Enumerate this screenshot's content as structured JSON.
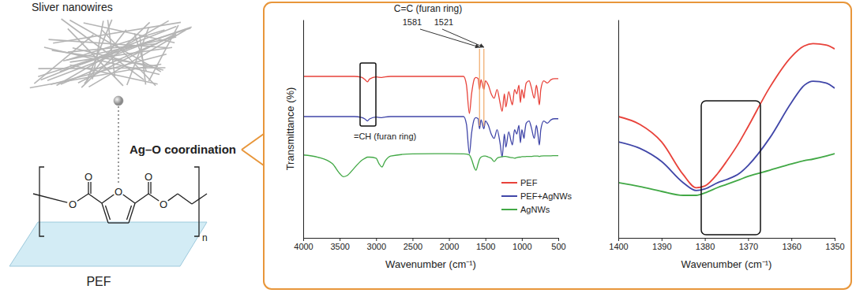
{
  "diagram": {
    "title": "Sliver nanowires",
    "link": "Ag–O coordination",
    "substrate": "PEF",
    "atoms": [
      "O",
      "O",
      "O",
      "O",
      "O"
    ],
    "repeat": "n"
  },
  "chart_data": [
    {
      "type": "line",
      "xlabel": "Wavenumber (cm⁻¹)",
      "ylabel": "Transmittance (%)",
      "x": [
        4000,
        3800,
        3600,
        3500,
        3450,
        3400,
        3300,
        3200,
        3150,
        3120,
        3090,
        3000,
        2960,
        2920,
        2880,
        2800,
        2500,
        2200,
        2000,
        1800,
        1760,
        1720,
        1690,
        1650,
        1630,
        1600,
        1581,
        1560,
        1521,
        1500,
        1460,
        1420,
        1380,
        1340,
        1300,
        1270,
        1240,
        1220,
        1180,
        1150,
        1130,
        1100,
        1070,
        1040,
        1020,
        1000,
        970,
        960,
        940,
        900,
        870,
        830,
        800,
        780,
        760,
        740,
        700,
        650,
        600,
        550,
        500
      ],
      "series": [
        {
          "name": "PEF",
          "color": "#e8423a",
          "values": [
            74,
            74,
            74,
            74,
            74,
            74,
            74,
            73.6,
            72.5,
            71.5,
            72.8,
            73.8,
            73.6,
            73.5,
            73.8,
            74,
            74,
            74,
            74,
            74,
            70,
            57,
            66,
            73,
            73.5,
            73,
            68,
            72.5,
            68,
            72,
            70,
            66,
            64,
            68,
            62,
            58,
            66,
            60,
            67,
            63,
            61,
            68,
            66,
            70,
            62,
            68,
            64,
            67,
            71,
            72,
            69,
            64,
            70,
            66,
            61,
            68,
            72,
            71,
            72.5,
            73,
            73
          ]
        },
        {
          "name": "PEF+AgNWs",
          "color": "#4046a8",
          "values": [
            55.6,
            55.6,
            55.6,
            55.6,
            55.6,
            55.6,
            55.6,
            55.2,
            54.4,
            53.6,
            54.5,
            55.4,
            55.2,
            55.1,
            55.4,
            55.6,
            55.6,
            55.6,
            55.6,
            55.6,
            52,
            38.6,
            48,
            54.6,
            55.1,
            54.6,
            50,
            54.1,
            50,
            53.6,
            51.6,
            47.6,
            45.6,
            49.6,
            43.6,
            37,
            47.6,
            41.6,
            48.6,
            44.6,
            42.6,
            49.6,
            47.6,
            51.6,
            43.6,
            49.6,
            45.6,
            48.6,
            52.6,
            53.6,
            50.6,
            45.6,
            51.6,
            47.6,
            42.6,
            49.6,
            53.6,
            52.6,
            54.1,
            54.6,
            54.6
          ]
        },
        {
          "name": "AgNWs",
          "color": "#41a845",
          "values": [
            38,
            37,
            34,
            29.5,
            28,
            28.5,
            32,
            35.5,
            36.5,
            37,
            37,
            36.5,
            34,
            32.5,
            35,
            37.5,
            38.5,
            38.6,
            38.6,
            38.5,
            38.4,
            38,
            36,
            32,
            31,
            34,
            36,
            37,
            37.5,
            37.5,
            37,
            36.5,
            35,
            36.5,
            37,
            37.2,
            37.3,
            37.3,
            37,
            36.8,
            36.8,
            36.5,
            36.8,
            37,
            37,
            37.2,
            37.2,
            37.2,
            37.3,
            37.3,
            37.3,
            37.5,
            37.5,
            37.5,
            37.3,
            37.5,
            37.6,
            37.6,
            37.6,
            37.7,
            37.7
          ]
        }
      ],
      "xlim": [
        4000,
        500
      ],
      "xticks": [
        4000,
        3500,
        3000,
        2500,
        2000,
        1500,
        1000,
        500
      ],
      "ylim": [
        0,
        100
      ],
      "tick_labels": "x",
      "grid": false,
      "legend": "lower right",
      "annotations": [
        {
          "text": "C=C (furan ring)"
        },
        {
          "text": "1581",
          "x": 1581
        },
        {
          "text": "1521",
          "x": 1521
        },
        {
          "text": "=CH (furan ring)"
        }
      ]
    },
    {
      "type": "line",
      "xlabel": "Wavenumber (cm⁻¹)",
      "x": [
        1400,
        1395,
        1390,
        1385,
        1382,
        1380,
        1377,
        1375,
        1372,
        1370,
        1365,
        1360,
        1357,
        1355,
        1352,
        1350
      ],
      "series": [
        {
          "color": "#e8423a",
          "values": [
            55.6,
            52,
            44,
            29,
            23,
            23.8,
            29.6,
            35,
            44,
            51,
            69,
            83,
            88,
            89,
            88.4,
            86.6
          ]
        },
        {
          "color": "#4046a8",
          "values": [
            44,
            41,
            35,
            25.3,
            21.7,
            22.4,
            25.3,
            26.7,
            29.6,
            33.2,
            45.8,
            62,
            70,
            71.8,
            71,
            68.6
          ]
        },
        {
          "color": "#41a845",
          "values": [
            25.3,
            23.5,
            21.3,
            19.5,
            19.5,
            20.6,
            23.1,
            24.5,
            26.7,
            28.2,
            31,
            33.9,
            35.4,
            36.1,
            37.5,
            38.6
          ]
        }
      ],
      "xlim": [
        1400,
        1350
      ],
      "xticks": [
        1400,
        1390,
        1380,
        1370,
        1360,
        1350
      ],
      "ylim": [
        0,
        100
      ],
      "tick_labels": "x",
      "grid": false
    }
  ]
}
